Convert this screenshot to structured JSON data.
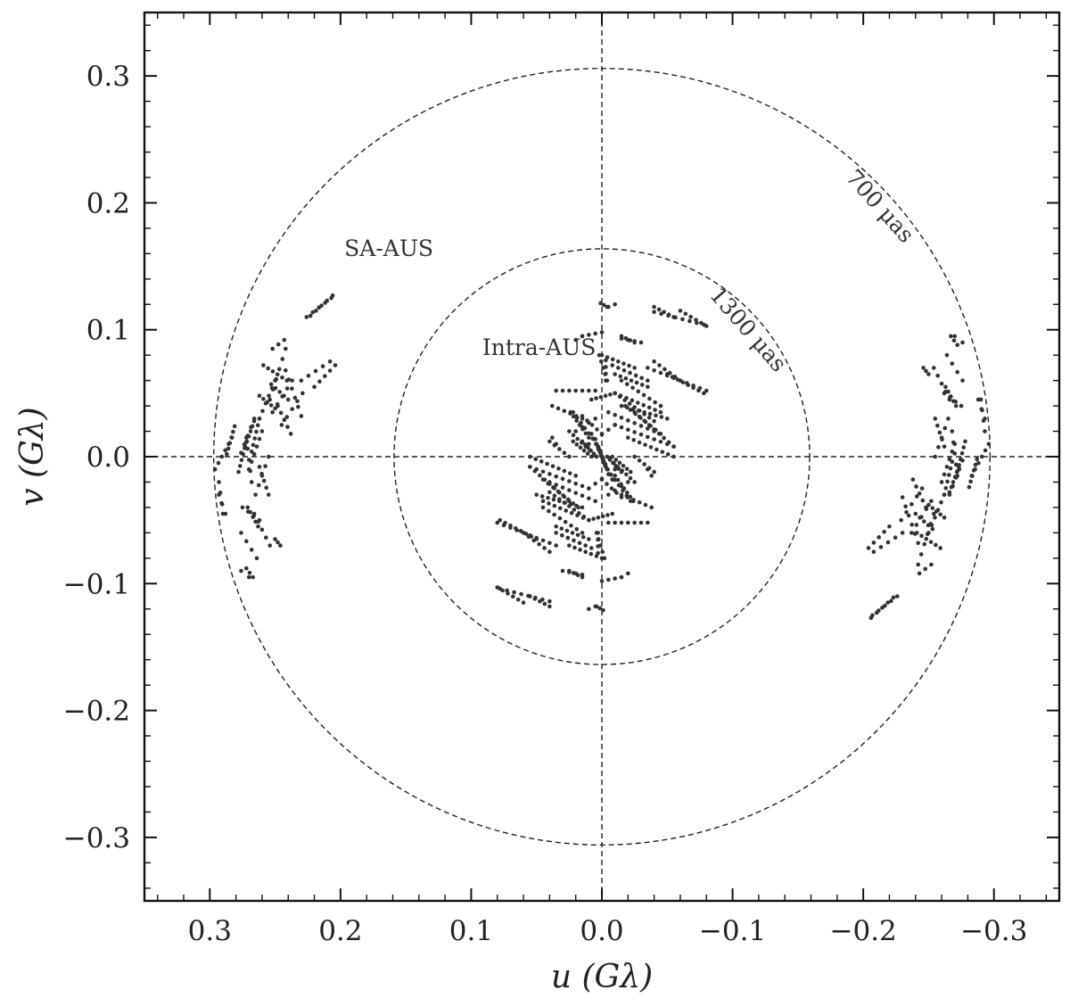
{
  "chart_data": {
    "type": "scatter",
    "xlabel": "u (Gλ)",
    "ylabel": "v (Gλ)",
    "xlim": [
      0.35,
      -0.35
    ],
    "ylim": [
      -0.35,
      0.35
    ],
    "x_ticks": [
      {
        "value": 0.3,
        "label": "0.3"
      },
      {
        "value": 0.2,
        "label": "0.2"
      },
      {
        "value": 0.1,
        "label": "0.1"
      },
      {
        "value": 0.0,
        "label": "0.0"
      },
      {
        "value": -0.1,
        "label": "−0.1"
      },
      {
        "value": -0.2,
        "label": "−0.2"
      },
      {
        "value": -0.3,
        "label": "−0.3"
      }
    ],
    "y_ticks": [
      {
        "value": 0.3,
        "label": "0.3"
      },
      {
        "value": 0.2,
        "label": "0.2"
      },
      {
        "value": 0.1,
        "label": "0.1"
      },
      {
        "value": 0.0,
        "label": "0.0"
      },
      {
        "value": -0.1,
        "label": "−0.1"
      },
      {
        "value": -0.2,
        "label": "−0.2"
      },
      {
        "value": -0.3,
        "label": "−0.3"
      }
    ],
    "reference_circles": [
      {
        "radius": 0.297,
        "label": "700 μas"
      },
      {
        "radius": 0.159,
        "label": "1300 μas"
      }
    ],
    "annotations": [
      {
        "text": "SA-AUS",
        "x": 0.163,
        "y": 0.158
      },
      {
        "text": "Intra-AUS",
        "x": 0.048,
        "y": 0.08
      }
    ],
    "grid": false,
    "marker_color": "#333333",
    "tracks": [
      {
        "u0": 0.287,
        "v0": 0.002,
        "u1": 0.281,
        "v1": 0.024,
        "n": 6
      },
      {
        "u0": 0.273,
        "v0": 0.008,
        "u1": 0.266,
        "v1": 0.028,
        "n": 6
      },
      {
        "u0": 0.278,
        "v0": -0.012,
        "u1": 0.271,
        "v1": 0.016,
        "n": 7
      },
      {
        "u0": 0.268,
        "v0": 0.004,
        "u1": 0.262,
        "v1": 0.03,
        "n": 6
      },
      {
        "u0": 0.293,
        "v0": -0.02,
        "u1": 0.29,
        "v1": -0.045,
        "n": 4
      },
      {
        "u0": 0.262,
        "v0": -0.008,
        "u1": 0.255,
        "v1": -0.03,
        "n": 5
      },
      {
        "u0": 0.271,
        "v0": -0.04,
        "u1": 0.263,
        "v1": -0.055,
        "n": 5
      },
      {
        "u0": 0.272,
        "v0": -0.088,
        "u1": 0.267,
        "v1": -0.095,
        "n": 3
      },
      {
        "u0": 0.25,
        "v0": -0.065,
        "u1": 0.246,
        "v1": -0.07,
        "n": 3
      },
      {
        "u0": 0.262,
        "v0": 0.048,
        "u1": 0.25,
        "v1": 0.038,
        "n": 5
      },
      {
        "u0": 0.259,
        "v0": 0.072,
        "u1": 0.241,
        "v1": 0.06,
        "n": 6
      },
      {
        "u0": 0.253,
        "v0": 0.057,
        "u1": 0.24,
        "v1": 0.045,
        "n": 5
      },
      {
        "u0": 0.252,
        "v0": 0.085,
        "u1": 0.243,
        "v1": 0.092,
        "n": 3
      },
      {
        "u0": 0.242,
        "v0": 0.068,
        "u1": 0.23,
        "v1": 0.032,
        "n": 6
      },
      {
        "u0": 0.248,
        "v0": 0.04,
        "u1": 0.238,
        "v1": 0.018,
        "n": 5
      },
      {
        "u0": 0.23,
        "v0": 0.06,
        "u1": 0.208,
        "v1": 0.075,
        "n": 5
      },
      {
        "u0": 0.223,
        "v0": 0.111,
        "u1": 0.206,
        "v1": 0.127,
        "n": 5
      },
      {
        "u0": -0.204,
        "v0": -0.072,
        "u1": -0.22,
        "v1": -0.055,
        "n": 5
      },
      {
        "u0": -0.207,
        "v0": -0.125,
        "u1": -0.226,
        "v1": -0.11,
        "n": 5
      },
      {
        "u0": -0.229,
        "v0": -0.05,
        "u1": -0.245,
        "v1": -0.025,
        "n": 5
      },
      {
        "u0": -0.237,
        "v0": -0.06,
        "u1": -0.252,
        "v1": -0.035,
        "n": 5
      },
      {
        "u0": -0.242,
        "v0": -0.085,
        "u1": -0.254,
        "v1": -0.045,
        "n": 6
      },
      {
        "u0": -0.25,
        "v0": -0.06,
        "u1": -0.262,
        "v1": -0.03,
        "n": 6
      },
      {
        "u0": -0.255,
        "v0": 0.0,
        "u1": -0.265,
        "v1": 0.03,
        "n": 5
      },
      {
        "u0": -0.26,
        "v0": -0.02,
        "u1": -0.27,
        "v1": 0.01,
        "n": 6
      },
      {
        "u0": -0.266,
        "v0": -0.03,
        "u1": -0.276,
        "v1": -0.003,
        "n": 5
      },
      {
        "u0": -0.268,
        "v0": 0.02,
        "u1": -0.272,
        "v1": -0.015,
        "n": 5
      },
      {
        "u0": -0.262,
        "v0": 0.05,
        "u1": -0.275,
        "v1": 0.04,
        "n": 4
      },
      {
        "u0": -0.264,
        "v0": 0.08,
        "u1": -0.276,
        "v1": 0.06,
        "n": 4
      },
      {
        "u0": -0.254,
        "v0": 0.07,
        "u1": -0.266,
        "v1": 0.045,
        "n": 5
      },
      {
        "u0": -0.283,
        "v0": -0.015,
        "u1": -0.296,
        "v1": 0.01,
        "n": 6
      },
      {
        "u0": -0.288,
        "v0": 0.045,
        "u1": -0.293,
        "v1": 0.03,
        "n": 3
      },
      {
        "u0": -0.27,
        "v0": 0.095,
        "u1": -0.276,
        "v1": 0.09,
        "n": 2
      },
      {
        "u0": 0.003,
        "v0": 0.008,
        "u1": -0.003,
        "v1": -0.008,
        "n": 12
      },
      {
        "u0": 0.008,
        "v0": 0.018,
        "u1": -0.008,
        "v1": -0.018,
        "n": 10
      },
      {
        "u0": 0.015,
        "v0": 0.012,
        "u1": 0.004,
        "v1": 0.0,
        "n": 6
      },
      {
        "u0": 0.025,
        "v0": 0.02,
        "u1": 0.006,
        "v1": 0.002,
        "n": 7
      },
      {
        "u0": 0.022,
        "v0": 0.035,
        "u1": 0.004,
        "v1": 0.01,
        "n": 7
      },
      {
        "u0": 0.04,
        "v0": 0.012,
        "u1": 0.025,
        "v1": 0.0,
        "n": 5
      },
      {
        "u0": -0.008,
        "v0": 0.0,
        "u1": -0.022,
        "v1": -0.012,
        "n": 6
      },
      {
        "u0": -0.01,
        "v0": -0.015,
        "u1": -0.024,
        "v1": -0.035,
        "n": 7
      },
      {
        "u0": 0.0,
        "v0": -0.018,
        "u1": -0.015,
        "v1": -0.032,
        "n": 5
      },
      {
        "u0": -0.005,
        "v0": -0.03,
        "u1": -0.02,
        "v1": -0.02,
        "n": 4
      },
      {
        "u0": 0.055,
        "v0": -0.008,
        "u1": 0.025,
        "v1": -0.035,
        "n": 9
      },
      {
        "u0": 0.045,
        "v0": -0.018,
        "u1": 0.018,
        "v1": -0.04,
        "n": 8
      },
      {
        "u0": 0.04,
        "v0": -0.028,
        "u1": 0.01,
        "v1": -0.05,
        "n": 9
      },
      {
        "u0": 0.045,
        "v0": -0.04,
        "u1": 0.015,
        "v1": -0.06,
        "n": 8
      },
      {
        "u0": 0.035,
        "v0": -0.055,
        "u1": 0.01,
        "v1": -0.065,
        "n": 7
      },
      {
        "u0": 0.025,
        "v0": -0.07,
        "u1": 0.0,
        "v1": -0.08,
        "n": 7
      },
      {
        "u0": 0.078,
        "v0": -0.05,
        "u1": 0.05,
        "v1": -0.065,
        "n": 8
      },
      {
        "u0": 0.06,
        "v0": -0.06,
        "u1": 0.04,
        "v1": -0.075,
        "n": 6
      },
      {
        "u0": 0.025,
        "v0": -0.09,
        "u1": 0.015,
        "v1": -0.095,
        "n": 4
      },
      {
        "u0": 0.08,
        "v0": -0.103,
        "u1": 0.06,
        "v1": -0.115,
        "n": 6
      },
      {
        "u0": 0.055,
        "v0": -0.11,
        "u1": 0.04,
        "v1": -0.118,
        "n": 5
      },
      {
        "u0": 0.01,
        "v0": -0.05,
        "u1": -0.008,
        "v1": -0.045,
        "n": 6
      },
      {
        "u0": 0.004,
        "v0": -0.06,
        "u1": -0.002,
        "v1": -0.08,
        "n": 5
      },
      {
        "u0": 0.004,
        "v0": -0.118,
        "u1": -0.001,
        "v1": -0.121,
        "n": 3
      },
      {
        "u0": -0.015,
        "v0": -0.095,
        "u1": -0.02,
        "v1": -0.092,
        "n": 2
      },
      {
        "u0": -0.003,
        "v0": 0.06,
        "u1": -0.003,
        "v1": 0.076,
        "n": 4
      },
      {
        "u0": -0.005,
        "v0": 0.118,
        "u1": -0.01,
        "v1": 0.12,
        "n": 2
      },
      {
        "u0": -0.008,
        "v0": 0.072,
        "u1": -0.035,
        "v1": 0.06,
        "n": 7
      },
      {
        "u0": -0.015,
        "v0": 0.093,
        "u1": -0.03,
        "v1": 0.09,
        "n": 4
      },
      {
        "u0": 0.015,
        "v0": 0.095,
        "u1": 0.0,
        "v1": 0.098,
        "n": 4
      },
      {
        "u0": -0.01,
        "v0": 0.05,
        "u1": -0.045,
        "v1": 0.035,
        "n": 9
      },
      {
        "u0": -0.015,
        "v0": 0.04,
        "u1": -0.05,
        "v1": 0.03,
        "n": 9
      },
      {
        "u0": -0.01,
        "v0": 0.025,
        "u1": -0.055,
        "v1": 0.008,
        "n": 10
      },
      {
        "u0": -0.005,
        "v0": 0.035,
        "u1": -0.04,
        "v1": 0.02,
        "n": 8
      },
      {
        "u0": -0.02,
        "v0": 0.015,
        "u1": -0.055,
        "v1": 0.0,
        "n": 9
      },
      {
        "u0": -0.035,
        "v0": 0.07,
        "u1": -0.08,
        "v1": 0.052,
        "n": 10
      },
      {
        "u0": -0.04,
        "v0": 0.114,
        "u1": -0.078,
        "v1": 0.104,
        "n": 8
      },
      {
        "u0": 0.035,
        "v0": 0.052,
        "u1": 0.005,
        "v1": 0.052,
        "n": 7
      },
      {
        "u0": 0.038,
        "v0": 0.04,
        "u1": 0.015,
        "v1": 0.03,
        "n": 6
      },
      {
        "u0": 0.01,
        "v0": -0.025,
        "u1": -0.01,
        "v1": -0.01,
        "n": 5
      },
      {
        "u0": -0.035,
        "v0": -0.01,
        "u1": -0.038,
        "v1": -0.015,
        "n": 2
      }
    ]
  }
}
